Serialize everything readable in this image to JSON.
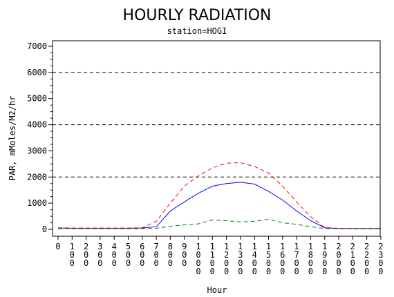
{
  "chart_data": {
    "type": "line",
    "title": "HOURLY RADIATION",
    "subtitle": "station=HOGI",
    "xlabel": "Hour",
    "ylabel": "PAR, mMoles/M2/hr",
    "ylim": [
      0,
      7000
    ],
    "yticks": [
      "0",
      "1000",
      "2000",
      "3000",
      "4000",
      "5000",
      "6000",
      "7000"
    ],
    "xticks": [
      "0",
      "100",
      "200",
      "300",
      "400",
      "500",
      "600",
      "700",
      "800",
      "900",
      "1000",
      "1100",
      "1200",
      "1300",
      "1400",
      "1500",
      "1600",
      "1700",
      "1800",
      "1900",
      "2000",
      "2100",
      "2200",
      "2300"
    ],
    "x": [
      0,
      100,
      200,
      300,
      400,
      500,
      600,
      700,
      800,
      900,
      1000,
      1100,
      1200,
      1300,
      1400,
      1500,
      1600,
      1700,
      1800,
      1900,
      2000,
      2100,
      2200,
      2300
    ],
    "reference_lines": [
      2000,
      4000,
      6000
    ],
    "grid": false,
    "series": [
      {
        "color": "#0000ff",
        "style": "solid",
        "values": [
          50,
          40,
          40,
          40,
          40,
          40,
          50,
          100,
          700,
          1050,
          1380,
          1650,
          1750,
          1800,
          1730,
          1450,
          1120,
          700,
          330,
          60,
          30,
          30,
          30,
          30
        ]
      },
      {
        "color": "#ff0000",
        "style": "dashed",
        "values": [
          60,
          50,
          50,
          50,
          50,
          50,
          60,
          300,
          1000,
          1650,
          2050,
          2350,
          2530,
          2550,
          2400,
          2150,
          1650,
          1050,
          480,
          70,
          40,
          40,
          40,
          40
        ]
      },
      {
        "color": "#008000",
        "style": "dashed",
        "values": [
          30,
          20,
          20,
          20,
          20,
          20,
          20,
          40,
          120,
          170,
          210,
          360,
          330,
          280,
          310,
          380,
          250,
          190,
          100,
          30,
          20,
          20,
          20,
          20
        ]
      }
    ]
  }
}
